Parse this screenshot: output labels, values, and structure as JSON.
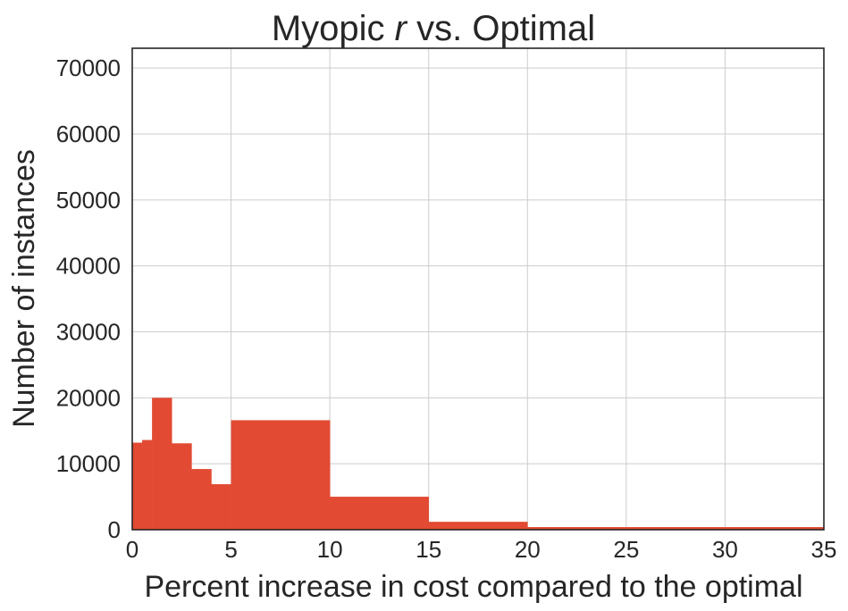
{
  "chart_data": {
    "type": "bar",
    "title": {
      "prefix": "Myopic ",
      "italic": "r",
      "suffix": " vs. Optimal"
    },
    "xlabel": "Percent increase in cost compared to the optimal",
    "ylabel": "Number of instances",
    "xlim": [
      0,
      35
    ],
    "ylim": [
      0,
      73000
    ],
    "x_ticks": [
      "0",
      "5",
      "10",
      "15",
      "20",
      "25",
      "30",
      "35"
    ],
    "y_ticks": [
      "0",
      "10000",
      "20000",
      "30000",
      "40000",
      "50000",
      "60000",
      "70000"
    ],
    "x_tick_values": [
      0,
      5,
      10,
      15,
      20,
      25,
      30,
      35
    ],
    "y_tick_values": [
      0,
      10000,
      20000,
      30000,
      40000,
      50000,
      60000,
      70000
    ],
    "grid": true,
    "bar_color": "#e24a33",
    "bins": [
      {
        "start": 0,
        "end": 0.5,
        "value": 13200
      },
      {
        "start": 0.5,
        "end": 1,
        "value": 13600
      },
      {
        "start": 1,
        "end": 2,
        "value": 20000
      },
      {
        "start": 2,
        "end": 3,
        "value": 13100
      },
      {
        "start": 3,
        "end": 4,
        "value": 9200
      },
      {
        "start": 4,
        "end": 5,
        "value": 6900
      },
      {
        "start": 5,
        "end": 10,
        "value": 16600
      },
      {
        "start": 10,
        "end": 15,
        "value": 5000
      },
      {
        "start": 15,
        "end": 20,
        "value": 1200
      },
      {
        "start": 20,
        "end": 35,
        "value": 400
      }
    ]
  }
}
